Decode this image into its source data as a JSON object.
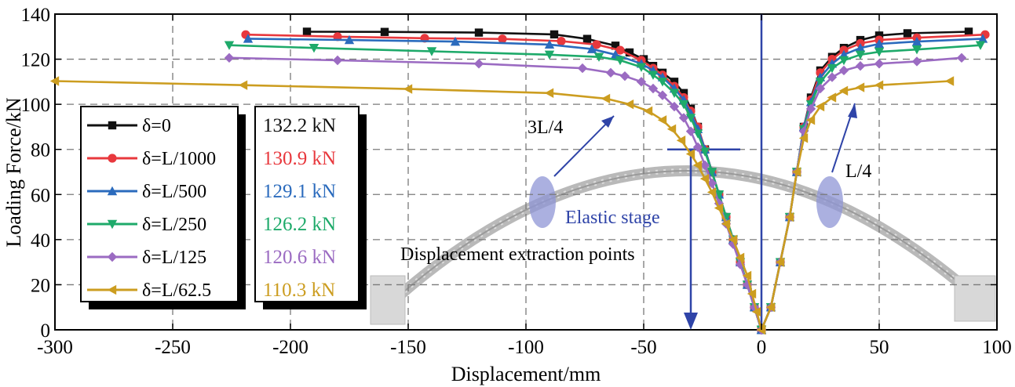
{
  "chart_data": {
    "type": "line",
    "xlabel": "Displacement/mm",
    "ylabel": "Loading Force/kN",
    "xlim": [
      -300,
      100
    ],
    "ylim": [
      0,
      140
    ],
    "xticks": [
      -300,
      -250,
      -200,
      -150,
      -100,
      -50,
      0,
      50,
      100
    ],
    "yticks": [
      0,
      20,
      40,
      60,
      80,
      100,
      120,
      140
    ],
    "xtick_labels": [
      "-300",
      "-250",
      "-200",
      "-150",
      "-100",
      "-50",
      "0",
      "50",
      "100"
    ],
    "ytick_labels": [
      "0",
      "20",
      "40",
      "60",
      "80",
      "100",
      "120",
      "140"
    ],
    "grid": true,
    "series": [
      {
        "name": "δ=0",
        "color": "#111111",
        "marker": "square",
        "peak_label": "132.2 kN",
        "left": [
          [
            0,
            0
          ],
          [
            -3,
            10
          ],
          [
            -6,
            20
          ],
          [
            -9,
            30
          ],
          [
            -12,
            40
          ],
          [
            -15,
            50
          ],
          [
            -18,
            60
          ],
          [
            -21,
            70
          ],
          [
            -24,
            80
          ],
          [
            -27,
            90
          ],
          [
            -30,
            98
          ],
          [
            -33,
            105
          ],
          [
            -37,
            110
          ],
          [
            -42,
            114
          ],
          [
            -46,
            117
          ],
          [
            -50,
            120
          ],
          [
            -56,
            123
          ],
          [
            -62,
            126
          ],
          [
            -74,
            129
          ],
          [
            -88,
            131
          ],
          [
            -120,
            131.8
          ],
          [
            -160,
            132.1
          ],
          [
            -193,
            132.2
          ]
        ],
        "right": [
          [
            0,
            0
          ],
          [
            4,
            10
          ],
          [
            8,
            30
          ],
          [
            12,
            50
          ],
          [
            15,
            70
          ],
          [
            18,
            90
          ],
          [
            21,
            103
          ],
          [
            25,
            115
          ],
          [
            30,
            121
          ],
          [
            35,
            125
          ],
          [
            42,
            128.5
          ],
          [
            50,
            130.5
          ],
          [
            62,
            131.5
          ],
          [
            88,
            132.2
          ]
        ]
      },
      {
        "name": "δ=L/1000",
        "color": "#e8383d",
        "marker": "circle",
        "peak_label": "130.9 kN",
        "left": [
          [
            0,
            0
          ],
          [
            -3,
            10
          ],
          [
            -6,
            20
          ],
          [
            -9,
            30
          ],
          [
            -12,
            40
          ],
          [
            -15,
            50
          ],
          [
            -18,
            60
          ],
          [
            -21,
            70
          ],
          [
            -24,
            80
          ],
          [
            -27,
            90
          ],
          [
            -30,
            97
          ],
          [
            -33,
            103
          ],
          [
            -37,
            108
          ],
          [
            -42,
            113
          ],
          [
            -46,
            116
          ],
          [
            -51,
            119.5
          ],
          [
            -60,
            124
          ],
          [
            -70,
            126.5
          ],
          [
            -85,
            128
          ],
          [
            -110,
            129
          ],
          [
            -143,
            129.3
          ],
          [
            -180,
            130
          ],
          [
            -219,
            130.9
          ]
        ],
        "right": [
          [
            0,
            0
          ],
          [
            4,
            10
          ],
          [
            8,
            30
          ],
          [
            12,
            50
          ],
          [
            15,
            70
          ],
          [
            18,
            90
          ],
          [
            21,
            102
          ],
          [
            25,
            114
          ],
          [
            30,
            120
          ],
          [
            35,
            124
          ],
          [
            42,
            127
          ],
          [
            50,
            128.5
          ],
          [
            66,
            129.5
          ],
          [
            95,
            130.9
          ]
        ]
      },
      {
        "name": "δ=L/500",
        "color": "#2b6bbd",
        "marker": "triangle-up",
        "peak_label": "129.1 kN",
        "left": [
          [
            0,
            0
          ],
          [
            -3,
            10
          ],
          [
            -6,
            20
          ],
          [
            -9,
            30
          ],
          [
            -12,
            40
          ],
          [
            -15,
            50
          ],
          [
            -18,
            60
          ],
          [
            -21,
            70
          ],
          [
            -24,
            80
          ],
          [
            -27,
            89
          ],
          [
            -30,
            96
          ],
          [
            -33,
            102
          ],
          [
            -37,
            107
          ],
          [
            -42,
            112
          ],
          [
            -46,
            115
          ],
          [
            -51,
            118
          ],
          [
            -62,
            122
          ],
          [
            -72,
            124.5
          ],
          [
            -90,
            126.5
          ],
          [
            -130,
            127.8
          ],
          [
            -175,
            128.5
          ],
          [
            -218,
            129.1
          ]
        ],
        "right": [
          [
            0,
            0
          ],
          [
            4,
            10
          ],
          [
            8,
            30
          ],
          [
            12,
            50
          ],
          [
            15,
            70
          ],
          [
            18,
            90
          ],
          [
            21,
            101
          ],
          [
            25,
            112
          ],
          [
            30,
            118
          ],
          [
            35,
            122
          ],
          [
            42,
            125
          ],
          [
            50,
            126.8
          ],
          [
            66,
            127.8
          ],
          [
            94,
            129.1
          ]
        ]
      },
      {
        "name": "δ=L/250",
        "color": "#1eaa6a",
        "marker": "triangle-down",
        "peak_label": "126.2 kN",
        "left": [
          [
            0,
            0
          ],
          [
            -3,
            10
          ],
          [
            -6,
            20
          ],
          [
            -9,
            30
          ],
          [
            -12,
            40
          ],
          [
            -15,
            50
          ],
          [
            -18,
            60
          ],
          [
            -21,
            70
          ],
          [
            -24,
            79
          ],
          [
            -27,
            87
          ],
          [
            -30,
            94
          ],
          [
            -33,
            100
          ],
          [
            -37,
            105
          ],
          [
            -42,
            110
          ],
          [
            -46,
            113
          ],
          [
            -51,
            116.5
          ],
          [
            -60,
            119.5
          ],
          [
            -69,
            121
          ],
          [
            -90,
            122
          ],
          [
            -140,
            123.5
          ],
          [
            -190,
            125
          ],
          [
            -226,
            126.2
          ]
        ],
        "right": [
          [
            0,
            0
          ],
          [
            4,
            10
          ],
          [
            8,
            30
          ],
          [
            12,
            50
          ],
          [
            15,
            70
          ],
          [
            18,
            89
          ],
          [
            21,
            100
          ],
          [
            25,
            110
          ],
          [
            30,
            116
          ],
          [
            35,
            119.5
          ],
          [
            42,
            122
          ],
          [
            50,
            123.3
          ],
          [
            66,
            124.3
          ],
          [
            93,
            126.2
          ]
        ]
      },
      {
        "name": "δ=L/125",
        "color": "#9b6bc2",
        "marker": "diamond",
        "peak_label": "120.6 kN",
        "left": [
          [
            0,
            0
          ],
          [
            -3,
            10
          ],
          [
            -6,
            20
          ],
          [
            -9,
            29
          ],
          [
            -12,
            38
          ],
          [
            -15,
            47
          ],
          [
            -18,
            56
          ],
          [
            -21,
            65
          ],
          [
            -24,
            73
          ],
          [
            -27,
            81
          ],
          [
            -30,
            88
          ],
          [
            -33,
            94
          ],
          [
            -37,
            99
          ],
          [
            -42,
            104
          ],
          [
            -46,
            107
          ],
          [
            -51,
            110
          ],
          [
            -58,
            112.5
          ],
          [
            -64,
            114
          ],
          [
            -76,
            116
          ],
          [
            -120,
            118
          ],
          [
            -180,
            119.5
          ],
          [
            -226,
            120.6
          ]
        ],
        "right": [
          [
            0,
            0
          ],
          [
            4,
            10
          ],
          [
            8,
            30
          ],
          [
            12,
            50
          ],
          [
            15,
            70
          ],
          [
            18,
            88
          ],
          [
            21,
            98
          ],
          [
            25,
            107
          ],
          [
            30,
            112
          ],
          [
            35,
            115
          ],
          [
            42,
            117
          ],
          [
            50,
            118
          ],
          [
            66,
            119
          ],
          [
            85,
            120.6
          ]
        ]
      },
      {
        "name": "δ=L/62.5",
        "color": "#cc9d20",
        "marker": "triangle-left",
        "peak_label": "110.3 kN",
        "left": [
          [
            0,
            0
          ],
          [
            -2,
            8
          ],
          [
            -4,
            16
          ],
          [
            -6,
            24
          ],
          [
            -9,
            32
          ],
          [
            -12,
            40
          ],
          [
            -15,
            47
          ],
          [
            -18,
            54
          ],
          [
            -21,
            61
          ],
          [
            -24,
            67
          ],
          [
            -27,
            73
          ],
          [
            -30,
            78
          ],
          [
            -34,
            84
          ],
          [
            -38,
            89
          ],
          [
            -42,
            93
          ],
          [
            -48,
            97
          ],
          [
            -56,
            100
          ],
          [
            -66,
            102.5
          ],
          [
            -90,
            105
          ],
          [
            -150,
            106.8
          ],
          [
            -220,
            108.5
          ],
          [
            -300,
            110.3
          ]
        ],
        "right": [
          [
            0,
            0
          ],
          [
            4,
            10
          ],
          [
            8,
            30
          ],
          [
            12,
            50
          ],
          [
            15,
            70
          ],
          [
            18,
            85
          ],
          [
            21,
            93
          ],
          [
            25,
            99
          ],
          [
            30,
            103
          ],
          [
            35,
            106
          ],
          [
            42,
            107.5
          ],
          [
            50,
            108.5
          ],
          [
            80,
            110.3
          ]
        ]
      }
    ],
    "annotations": {
      "left_point": "3L/4",
      "right_point": "L/4",
      "stage": "Elastic stage",
      "extraction": "Displacement extraction points"
    }
  }
}
